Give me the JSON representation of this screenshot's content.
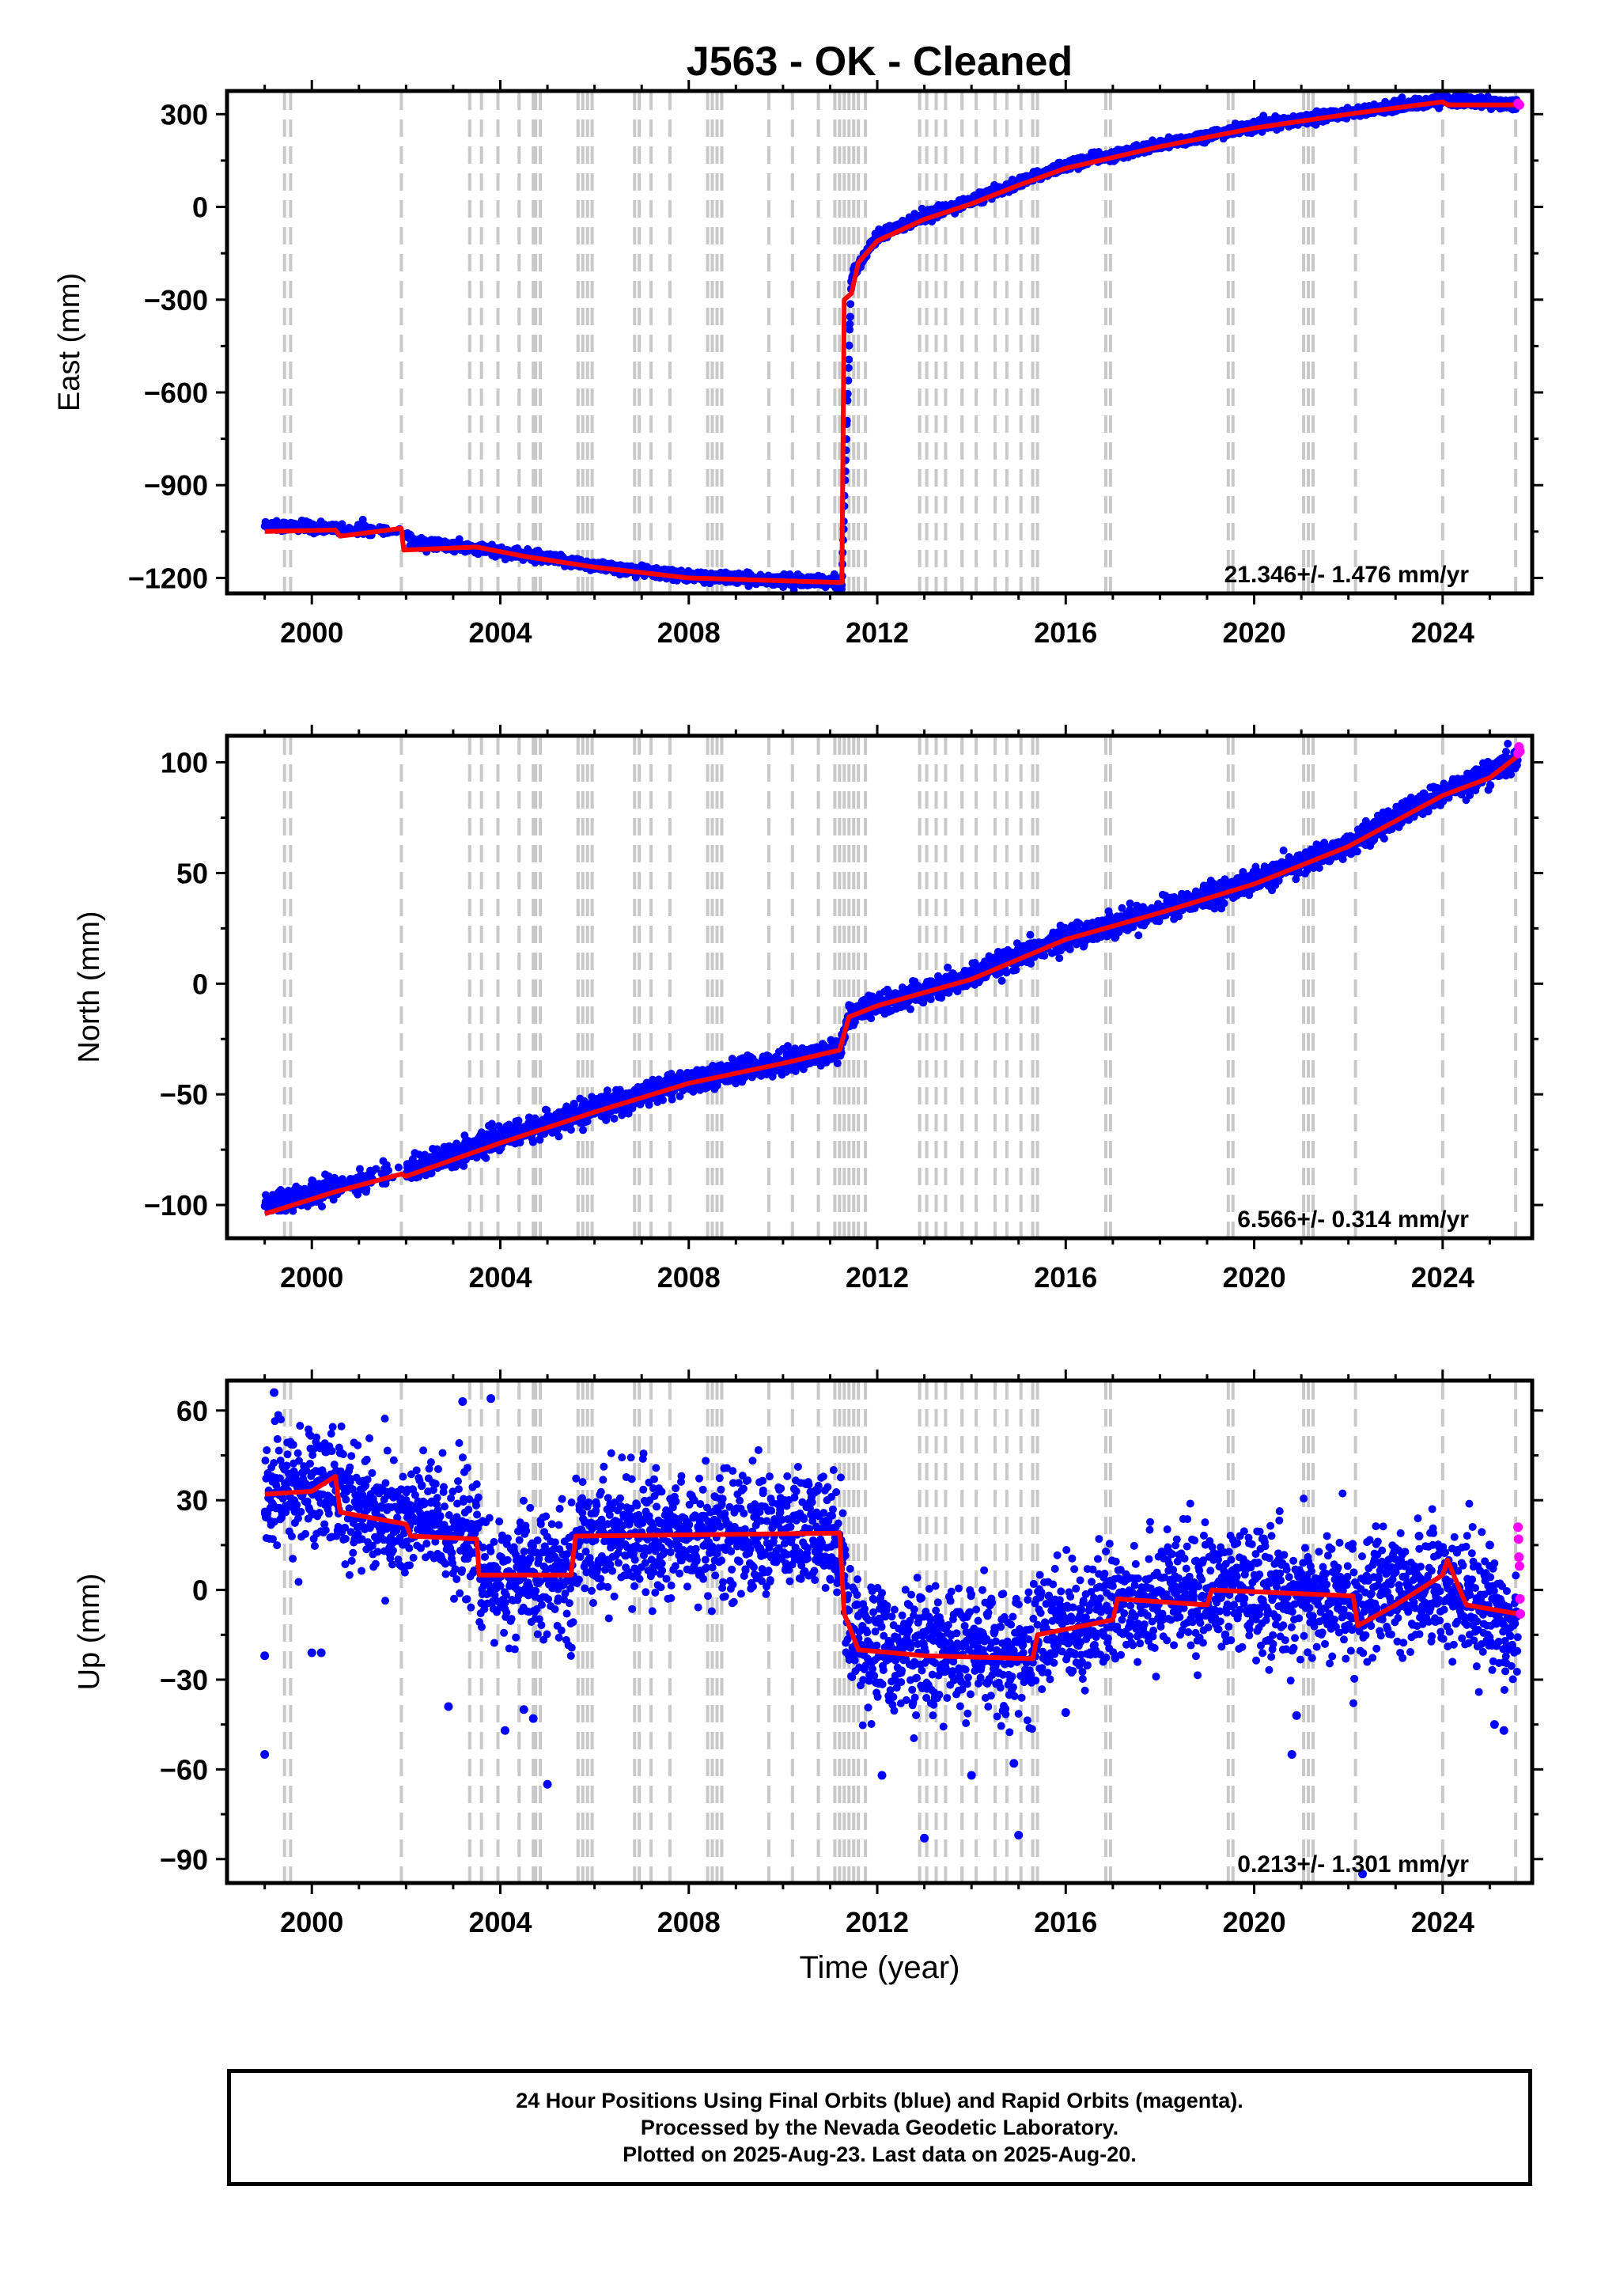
{
  "title": "J563  - OK - Cleaned",
  "xlabel": "Time (year)",
  "colors": {
    "final_orbits": "#0000ff",
    "rapid_orbits": "#ff00ff",
    "model": "#ff0000",
    "event_lines": "#c8c8c8"
  },
  "caption": {
    "line1": "24 Hour Positions Using Final Orbits (blue) and Rapid Orbits (magenta).",
    "line2": "Processed by the Nevada Geodetic Laboratory.",
    "line3": "Plotted on 2025-Aug-23. Last data on 2025-Aug-20."
  },
  "chart_data": [
    {
      "type": "scatter",
      "name": "east",
      "ylabel": "East (mm)",
      "xlim": [
        1998.2,
        2025.9
      ],
      "ylim": [
        -1250,
        375
      ],
      "x_ticks": [
        2000,
        2004,
        2008,
        2012,
        2016,
        2020,
        2024
      ],
      "y_ticks": [
        300,
        0,
        -300,
        -600,
        -900,
        -1200
      ],
      "velocity_label": "21.346+/- 1.476 mm/yr",
      "grid": false,
      "model_line": [
        [
          1999.0,
          -1050
        ],
        [
          2000.5,
          -1045
        ],
        [
          2000.6,
          -1065
        ],
        [
          2001.9,
          -1040
        ],
        [
          2001.95,
          -1110
        ],
        [
          2003.5,
          -1100
        ],
        [
          2004.5,
          -1130
        ],
        [
          2006.0,
          -1165
        ],
        [
          2008.0,
          -1200
        ],
        [
          2011.25,
          -1215
        ],
        [
          2011.3,
          -300
        ],
        [
          2011.45,
          -280
        ],
        [
          2011.6,
          -180
        ],
        [
          2012.0,
          -110
        ],
        [
          2013.0,
          -40
        ],
        [
          2014.0,
          10
        ],
        [
          2015.0,
          70
        ],
        [
          2016.0,
          125
        ],
        [
          2018.0,
          195
        ],
        [
          2020.0,
          255
        ],
        [
          2022.0,
          300
        ],
        [
          2024.0,
          340
        ],
        [
          2024.1,
          330
        ],
        [
          2025.6,
          330
        ]
      ],
      "scatter_trend": [
        [
          1999.0,
          -1030
        ],
        [
          2000.5,
          -1040
        ],
        [
          2001.9,
          -1045
        ],
        [
          2002.2,
          -1085
        ],
        [
          2004.0,
          -1115
        ],
        [
          2006.0,
          -1160
        ],
        [
          2008.0,
          -1195
        ],
        [
          2011.25,
          -1215
        ],
        [
          2011.45,
          -230
        ],
        [
          2012.0,
          -90
        ],
        [
          2013.0,
          -30
        ],
        [
          2014.0,
          20
        ],
        [
          2016.0,
          135
        ],
        [
          2018.0,
          200
        ],
        [
          2020.0,
          260
        ],
        [
          2022.0,
          305
        ],
        [
          2024.0,
          345
        ],
        [
          2025.6,
          332
        ]
      ],
      "noise_mm": 8,
      "rapid_points": [
        [
          2025.6,
          335
        ],
        [
          2025.63,
          330
        ]
      ]
    },
    {
      "type": "scatter",
      "name": "north",
      "ylabel": "North (mm)",
      "xlim": [
        1998.2,
        2025.9
      ],
      "ylim": [
        -115,
        112
      ],
      "x_ticks": [
        2000,
        2004,
        2008,
        2012,
        2016,
        2020,
        2024
      ],
      "y_ticks": [
        100,
        50,
        0,
        -50,
        -100
      ],
      "velocity_label": "6.566+/- 0.314 mm/yr",
      "grid": false,
      "model_line": [
        [
          1999.0,
          -104
        ],
        [
          2000.5,
          -94
        ],
        [
          2001.9,
          -86
        ],
        [
          2002.0,
          -87
        ],
        [
          2004.0,
          -72
        ],
        [
          2006.0,
          -58
        ],
        [
          2008.0,
          -45
        ],
        [
          2010.0,
          -36
        ],
        [
          2011.2,
          -30
        ],
        [
          2011.4,
          -15
        ],
        [
          2012.0,
          -10
        ],
        [
          2014.0,
          2
        ],
        [
          2016.0,
          20
        ],
        [
          2018.0,
          32
        ],
        [
          2020.0,
          45
        ],
        [
          2022.0,
          62
        ],
        [
          2024.0,
          85
        ],
        [
          2025.0,
          93
        ],
        [
          2025.6,
          103
        ]
      ],
      "scatter_trend": [
        [
          1999.0,
          -100
        ],
        [
          2000.5,
          -92
        ],
        [
          2001.9,
          -85
        ],
        [
          2004.0,
          -70
        ],
        [
          2006.0,
          -57
        ],
        [
          2008.0,
          -44
        ],
        [
          2011.2,
          -30
        ],
        [
          2011.4,
          -14
        ],
        [
          2014.0,
          3
        ],
        [
          2016.0,
          21
        ],
        [
          2018.0,
          33
        ],
        [
          2020.0,
          46
        ],
        [
          2022.0,
          63
        ],
        [
          2024.0,
          86
        ],
        [
          2025.6,
          101
        ]
      ],
      "noise_mm": 2.5,
      "rapid_points": [
        [
          2025.6,
          104
        ],
        [
          2025.62,
          107
        ],
        [
          2025.64,
          105
        ]
      ]
    },
    {
      "type": "scatter",
      "name": "up",
      "ylabel": "Up (mm)",
      "xlim": [
        1998.2,
        2025.9
      ],
      "ylim": [
        -98,
        70
      ],
      "x_ticks": [
        2000,
        2004,
        2008,
        2012,
        2016,
        2020,
        2024
      ],
      "y_ticks": [
        60,
        30,
        0,
        -30,
        -60,
        -90
      ],
      "velocity_label": "0.213+/- 1.301 mm/yr",
      "grid": false,
      "model_line": [
        [
          1999.0,
          32
        ],
        [
          2000.0,
          33
        ],
        [
          2000.5,
          38
        ],
        [
          2000.6,
          26
        ],
        [
          2002.0,
          22
        ],
        [
          2002.1,
          18
        ],
        [
          2003.5,
          17
        ],
        [
          2003.55,
          5
        ],
        [
          2005.5,
          5
        ],
        [
          2005.6,
          18
        ],
        [
          2011.2,
          19
        ],
        [
          2011.3,
          -8
        ],
        [
          2011.6,
          -20
        ],
        [
          2013.0,
          -22
        ],
        [
          2015.3,
          -23
        ],
        [
          2015.4,
          -15
        ],
        [
          2017.0,
          -10
        ],
        [
          2017.1,
          -3
        ],
        [
          2019.0,
          -5
        ],
        [
          2019.1,
          0
        ],
        [
          2022.1,
          -2
        ],
        [
          2022.2,
          -12
        ],
        [
          2023.0,
          -5
        ],
        [
          2024.0,
          5
        ],
        [
          2024.1,
          10
        ],
        [
          2024.5,
          -5
        ],
        [
          2025.6,
          -8
        ]
      ],
      "scatter_trend": [
        [
          1999.0,
          32
        ],
        [
          2000.5,
          36
        ],
        [
          2001.0,
          27
        ],
        [
          2002.0,
          22
        ],
        [
          2002.2,
          25
        ],
        [
          2003.5,
          17
        ],
        [
          2003.6,
          3
        ],
        [
          2005.5,
          5
        ],
        [
          2005.7,
          18
        ],
        [
          2011.2,
          19
        ],
        [
          2011.4,
          -12
        ],
        [
          2012.0,
          -20
        ],
        [
          2015.3,
          -22
        ],
        [
          2015.4,
          -14
        ],
        [
          2017.0,
          -8
        ],
        [
          2017.2,
          -3
        ],
        [
          2019.2,
          0
        ],
        [
          2022.2,
          -4
        ],
        [
          2024.0,
          2
        ],
        [
          2025.6,
          -12
        ]
      ],
      "noise_mm": 10,
      "outliers": [
        [
          1999.0,
          -55
        ],
        [
          1999.0,
          -22
        ],
        [
          1999.2,
          66
        ],
        [
          2000.0,
          -21
        ],
        [
          2000.2,
          -21
        ],
        [
          2002.9,
          -39
        ],
        [
          2003.2,
          63
        ],
        [
          2003.8,
          64
        ],
        [
          2004.1,
          -47
        ],
        [
          2004.5,
          -40
        ],
        [
          2004.7,
          -43
        ],
        [
          2005.0,
          -65
        ],
        [
          2012.1,
          -62
        ],
        [
          2013.0,
          -83
        ],
        [
          2014.0,
          -62
        ],
        [
          2014.9,
          -58
        ],
        [
          2015.0,
          -82
        ],
        [
          2016.0,
          -41
        ],
        [
          2016.5,
          -15
        ],
        [
          2020.8,
          -55
        ],
        [
          2020.9,
          -42
        ],
        [
          2022.3,
          -95
        ],
        [
          2025.1,
          -45
        ],
        [
          2025.3,
          -47
        ],
        [
          2025.0,
          15
        ],
        [
          2023.5,
          18
        ]
      ],
      "rapid_points": [
        [
          2025.6,
          21
        ],
        [
          2025.61,
          17
        ],
        [
          2025.62,
          11
        ],
        [
          2025.63,
          8
        ],
        [
          2025.64,
          -3
        ],
        [
          2025.65,
          -8
        ]
      ]
    }
  ],
  "event_lines_years": [
    1999.42,
    1999.55,
    2001.9,
    2003.35,
    2003.6,
    2003.95,
    2004.4,
    2004.7,
    2004.75,
    2004.85,
    2005.65,
    2005.75,
    2005.85,
    2005.95,
    2006.85,
    2006.95,
    2007.2,
    2007.6,
    2008.4,
    2008.5,
    2008.6,
    2008.7,
    2009.7,
    2010.2,
    2010.75,
    2011.1,
    2011.2,
    2011.3,
    2011.4,
    2011.5,
    2011.6,
    2011.75,
    2012.9,
    2013.05,
    2013.25,
    2013.45,
    2013.8,
    2014.1,
    2014.5,
    2014.75,
    2015.05,
    2015.3,
    2015.4,
    2016.85,
    2016.95,
    2019.45,
    2019.55,
    2021.05,
    2021.15,
    2021.25,
    2022.15,
    2024.0,
    2025.55
  ]
}
